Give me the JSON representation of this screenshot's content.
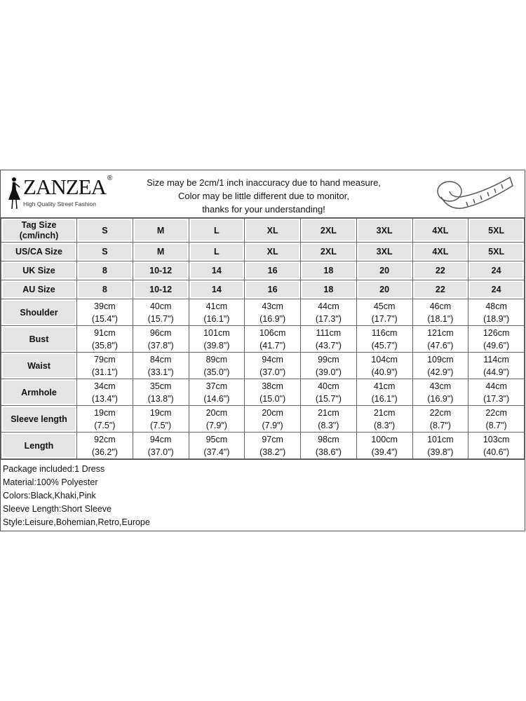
{
  "header": {
    "logo": {
      "brand": "ZANZEA",
      "registered": "®",
      "tagline": "High Quality Street Fashion"
    },
    "notice": [
      "Size may be 2cm/1 inch inaccuracy due to hand measure,",
      "Color may be little different due to monitor,",
      "thanks for your understanding!"
    ],
    "icon": "measuring-tape-icon"
  },
  "size_rows": [
    {
      "label": "Tag Size (cm/inch)",
      "values": [
        "S",
        "M",
        "L",
        "XL",
        "2XL",
        "3XL",
        "4XL",
        "5XL"
      ]
    },
    {
      "label": "US/CA Size",
      "values": [
        "S",
        "M",
        "L",
        "XL",
        "2XL",
        "3XL",
        "4XL",
        "5XL"
      ]
    },
    {
      "label": "UK Size",
      "values": [
        "8",
        "10-12",
        "14",
        "16",
        "18",
        "20",
        "22",
        "24"
      ]
    },
    {
      "label": "AU Size",
      "values": [
        "8",
        "10-12",
        "14",
        "16",
        "18",
        "20",
        "22",
        "24"
      ]
    }
  ],
  "measure_rows": [
    {
      "label": "Shoulder",
      "cm": [
        "39cm",
        "40cm",
        "41cm",
        "43cm",
        "44cm",
        "45cm",
        "46cm",
        "48cm"
      ],
      "inch": [
        "(15.4\")",
        "(15.7\")",
        "(16.1\")",
        "(16.9\")",
        "(17.3\")",
        "(17.7\")",
        "(18.1\")",
        "(18.9\")"
      ]
    },
    {
      "label": "Bust",
      "cm": [
        "91cm",
        "96cm",
        "101cm",
        "106cm",
        "111cm",
        "116cm",
        "121cm",
        "126cm"
      ],
      "inch": [
        "(35.8\")",
        "(37.8\")",
        "(39.8\")",
        "(41.7\")",
        "(43.7\")",
        "(45.7\")",
        "(47.6\")",
        "(49.6\")"
      ]
    },
    {
      "label": "Waist",
      "cm": [
        "79cm",
        "84cm",
        "89cm",
        "94cm",
        "99cm",
        "104cm",
        "109cm",
        "114cm"
      ],
      "inch": [
        "(31.1\")",
        "(33.1\")",
        "(35.0\")",
        "(37.0\")",
        "(39.0\")",
        "(40.9\")",
        "(42.9\")",
        "(44.9\")"
      ]
    },
    {
      "label": "Armhole",
      "cm": [
        "34cm",
        "35cm",
        "37cm",
        "38cm",
        "40cm",
        "41cm",
        "43cm",
        "44cm"
      ],
      "inch": [
        "(13.4\")",
        "(13.8\")",
        "(14.6\")",
        "(15.0\")",
        "(15.7\")",
        "(16.1\")",
        "(16.9\")",
        "(17.3\")"
      ]
    },
    {
      "label": "Sleeve length",
      "cm": [
        "19cm",
        "19cm",
        "20cm",
        "20cm",
        "21cm",
        "21cm",
        "22cm",
        "22cm"
      ],
      "inch": [
        "(7.5\")",
        "(7.5\")",
        "(7.9\")",
        "(7.9\")",
        "(8.3\")",
        "(8.3\")",
        "(8.7\")",
        "(8.7\")"
      ]
    },
    {
      "label": "Length",
      "cm": [
        "92cm",
        "94cm",
        "95cm",
        "97cm",
        "98cm",
        "100cm",
        "101cm",
        "103cm"
      ],
      "inch": [
        "(36.2\")",
        "(37.0\")",
        "(37.4\")",
        "(38.2\")",
        "(38.6\")",
        "(39.4\")",
        "(39.8\")",
        "(40.6\")"
      ]
    }
  ],
  "footer": [
    "Package included:1 Dress",
    "Material:100% Polyester",
    "Colors:Black,Khaki,Pink",
    "Sleeve Length:Short Sleeve",
    "Style:Leisure,Bohemian,Retro,Europe"
  ]
}
